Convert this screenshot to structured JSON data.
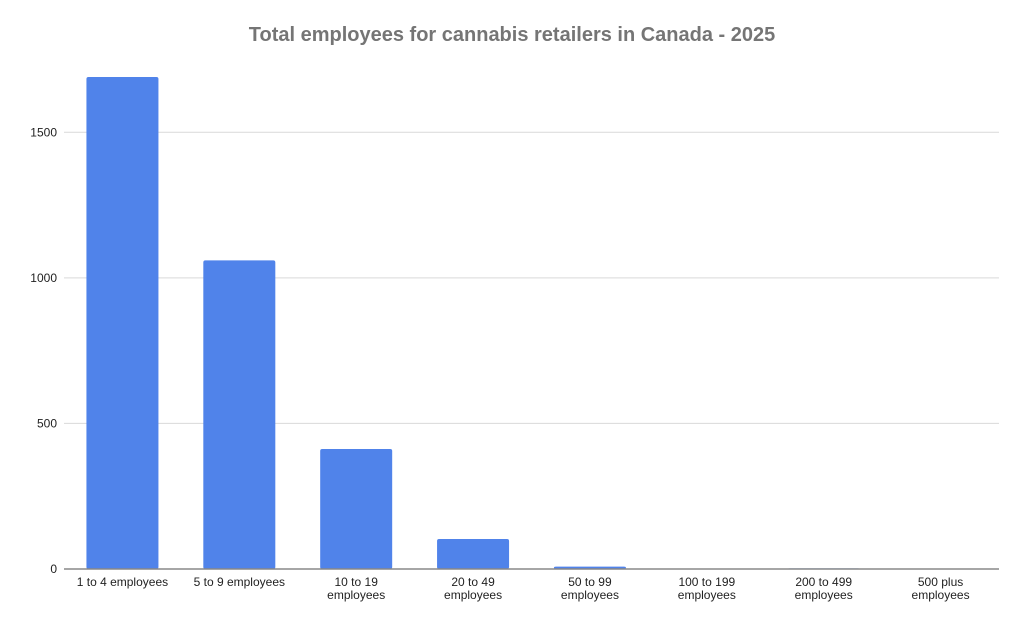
{
  "chart_data": {
    "type": "bar",
    "title": "Total employees for cannabis retailers in Canada - 2025",
    "xlabel": "",
    "ylabel": "",
    "categories": [
      "1 to 4 employees",
      "5 to 9 employees",
      "10 to 19 employees",
      "20 to 49 employees",
      "50 to 99 employees",
      "100 to 199 employees",
      "200 to 499 employees",
      "500 plus employees"
    ],
    "category_lines": [
      [
        "1 to 4 employees"
      ],
      [
        "5 to 9 employees"
      ],
      [
        "10 to 19",
        "employees"
      ],
      [
        "20 to 49",
        "employees"
      ],
      [
        "50 to 99",
        "employees"
      ],
      [
        "100 to 199",
        "employees"
      ],
      [
        "200 to 499",
        "employees"
      ],
      [
        "500 plus",
        "employees"
      ]
    ],
    "values": [
      1690,
      1060,
      412,
      103,
      8,
      0,
      2,
      0
    ],
    "ylim": [
      0,
      1700
    ],
    "yticks": [
      0,
      500,
      1000,
      1500
    ],
    "grid": true,
    "legend": "none",
    "bar_color": "#5083EA"
  }
}
